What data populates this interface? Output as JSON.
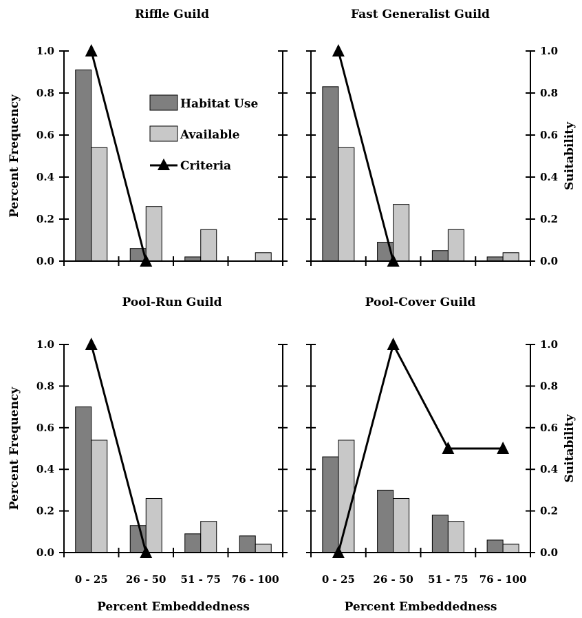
{
  "colors": {
    "habitat_use": "#7f7f7f",
    "available": "#c8c8c8",
    "criteria": "#000000",
    "axis": "#000000"
  },
  "chart_data": [
    {
      "type": "bar",
      "title": "Riffle Guild",
      "categories": [
        "0 - 25",
        "26 - 50",
        "51 - 75",
        "76 - 100"
      ],
      "ylabel": "Percent Frequency",
      "y2label": "",
      "xlabel": "",
      "ylim": [
        0,
        1.0
      ],
      "y2lim": [
        0,
        1.0
      ],
      "yticks": [
        "0.0",
        "0.2",
        "0.4",
        "0.6",
        "0.8",
        "1.0"
      ],
      "y2ticks": [],
      "show_categories": false,
      "series": [
        {
          "name": "Habitat Use",
          "kind": "bar",
          "values": [
            0.91,
            0.06,
            0.02,
            0.0
          ]
        },
        {
          "name": "Available",
          "kind": "bar",
          "values": [
            0.54,
            0.26,
            0.15,
            0.04
          ]
        },
        {
          "name": "Criteria",
          "kind": "line",
          "axis": "right",
          "values": [
            1.0,
            0.0,
            null,
            null
          ]
        }
      ]
    },
    {
      "type": "bar",
      "title": "Fast Generalist Guild",
      "categories": [
        "0 - 25",
        "26 - 50",
        "51 - 75",
        "76 - 100"
      ],
      "ylabel": "",
      "y2label": "Suitability",
      "xlabel": "",
      "ylim": [
        0,
        1.0
      ],
      "y2lim": [
        0,
        1.0
      ],
      "yticks": [],
      "y2ticks": [
        "0.0",
        "0.2",
        "0.4",
        "0.6",
        "0.8",
        "1.0"
      ],
      "show_categories": false,
      "series": [
        {
          "name": "Habitat Use",
          "kind": "bar",
          "values": [
            0.83,
            0.09,
            0.05,
            0.02
          ]
        },
        {
          "name": "Available",
          "kind": "bar",
          "values": [
            0.54,
            0.27,
            0.15,
            0.04
          ]
        },
        {
          "name": "Criteria",
          "kind": "line",
          "axis": "right",
          "values": [
            1.0,
            0.0,
            null,
            null
          ]
        }
      ]
    },
    {
      "type": "bar",
      "title": "Pool-Run Guild",
      "categories": [
        "0 - 25",
        "26 - 50",
        "51 - 75",
        "76 - 100"
      ],
      "ylabel": "Percent Frequency",
      "y2label": "",
      "xlabel": "Percent Embeddedness",
      "ylim": [
        0,
        1.0
      ],
      "y2lim": [
        0,
        1.0
      ],
      "yticks": [
        "0.0",
        "0.2",
        "0.4",
        "0.6",
        "0.8",
        "1.0"
      ],
      "y2ticks": [],
      "show_categories": true,
      "series": [
        {
          "name": "Habitat Use",
          "kind": "bar",
          "values": [
            0.7,
            0.13,
            0.09,
            0.08
          ]
        },
        {
          "name": "Available",
          "kind": "bar",
          "values": [
            0.54,
            0.26,
            0.15,
            0.04
          ]
        },
        {
          "name": "Criteria",
          "kind": "line",
          "axis": "right",
          "values": [
            1.0,
            0.0,
            null,
            null
          ]
        }
      ]
    },
    {
      "type": "bar",
      "title": "Pool-Cover Guild",
      "categories": [
        "0 - 25",
        "26 - 50",
        "51 - 75",
        "76 - 100"
      ],
      "ylabel": "",
      "y2label": "Suitability",
      "xlabel": "Percent Embeddedness",
      "ylim": [
        0,
        1.0
      ],
      "y2lim": [
        0,
        1.0
      ],
      "yticks": [],
      "y2ticks": [
        "0.0",
        "0.2",
        "0.4",
        "0.6",
        "0.8",
        "1.0"
      ],
      "show_categories": true,
      "series": [
        {
          "name": "Habitat Use",
          "kind": "bar",
          "values": [
            0.46,
            0.3,
            0.18,
            0.06
          ]
        },
        {
          "name": "Available",
          "kind": "bar",
          "values": [
            0.54,
            0.26,
            0.15,
            0.04
          ]
        },
        {
          "name": "Criteria",
          "kind": "line",
          "axis": "right",
          "values": [
            0.0,
            1.0,
            0.5,
            0.5
          ]
        }
      ]
    }
  ],
  "legend": {
    "items": [
      {
        "label": "Habitat Use",
        "kind": "bar",
        "color": "#7f7f7f"
      },
      {
        "label": "Available",
        "kind": "bar",
        "color": "#c8c8c8"
      },
      {
        "label": "Criteria",
        "kind": "line",
        "color": "#000000"
      }
    ]
  }
}
